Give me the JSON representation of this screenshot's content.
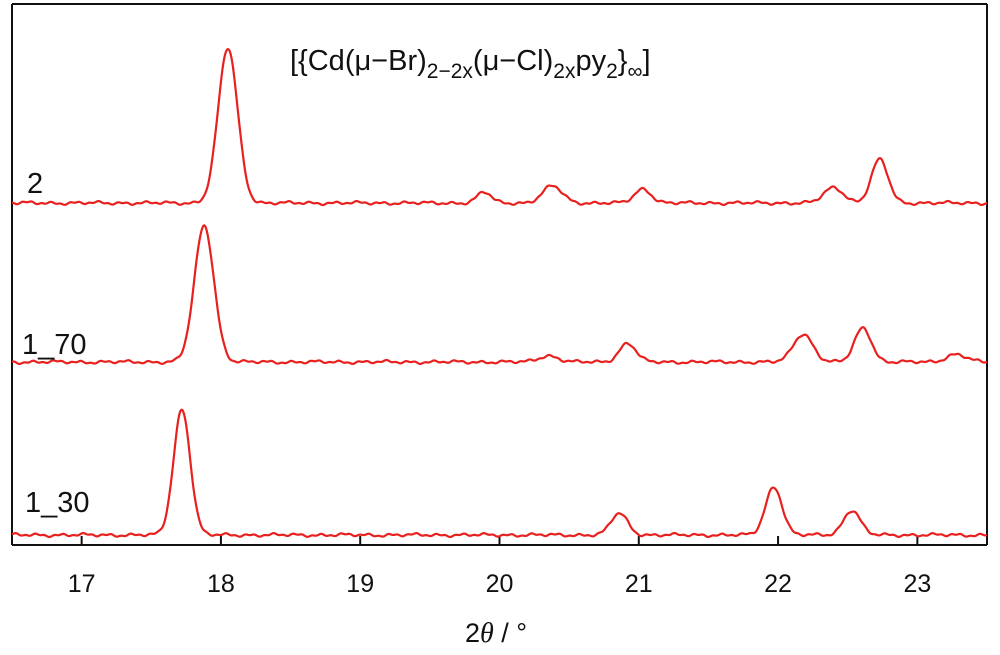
{
  "chart_data": {
    "type": "line",
    "title": {
      "parts": [
        {
          "text": "[{Cd(μ−Br)",
          "sub": false
        },
        {
          "text": "2−2x",
          "sub": true
        },
        {
          "text": "(μ−Cl)",
          "sub": false
        },
        {
          "text": "2x",
          "sub": true
        },
        {
          "text": "py",
          "sub": false
        },
        {
          "text": "2",
          "sub": true
        },
        {
          "text": "}",
          "sub": false
        },
        {
          "text": "∞",
          "sub": true
        },
        {
          "text": "]",
          "sub": false
        }
      ]
    },
    "xlabel": {
      "prefix": "2",
      "symbol": "θ",
      "suffix": " / °"
    },
    "ylabel": "",
    "xlim": [
      16.5,
      23.5
    ],
    "xticks": [
      17,
      18,
      19,
      20,
      21,
      22,
      23
    ],
    "xtick_labels": [
      "17",
      "18",
      "19",
      "20",
      "21",
      "22",
      "23"
    ],
    "y_axis_shown": false,
    "line_color": "#e8201e",
    "series": [
      {
        "name": "2",
        "baseline_offset": 2.0,
        "peaks": [
          {
            "x": 18.05,
            "height": 1.0,
            "width": 0.07
          },
          {
            "x": 19.89,
            "height": 0.07,
            "width": 0.05
          },
          {
            "x": 20.38,
            "height": 0.11,
            "width": 0.07
          },
          {
            "x": 21.03,
            "height": 0.09,
            "width": 0.06
          },
          {
            "x": 22.4,
            "height": 0.1,
            "width": 0.07
          },
          {
            "x": 22.73,
            "height": 0.28,
            "width": 0.06
          }
        ]
      },
      {
        "name": "1_70",
        "baseline_offset": 1.0,
        "peaks": [
          {
            "x": 17.88,
            "height": 0.88,
            "width": 0.07
          },
          {
            "x": 20.35,
            "height": 0.04,
            "width": 0.07
          },
          {
            "x": 20.92,
            "height": 0.12,
            "width": 0.06
          },
          {
            "x": 22.18,
            "height": 0.18,
            "width": 0.07
          },
          {
            "x": 22.61,
            "height": 0.22,
            "width": 0.06
          },
          {
            "x": 23.28,
            "height": 0.05,
            "width": 0.07
          }
        ]
      },
      {
        "name": "1_30",
        "baseline_offset": 0.0,
        "peaks": [
          {
            "x": 17.72,
            "height": 0.81,
            "width": 0.06
          },
          {
            "x": 20.86,
            "height": 0.14,
            "width": 0.06
          },
          {
            "x": 21.97,
            "height": 0.31,
            "width": 0.06
          },
          {
            "x": 22.53,
            "height": 0.16,
            "width": 0.06
          }
        ]
      }
    ]
  }
}
